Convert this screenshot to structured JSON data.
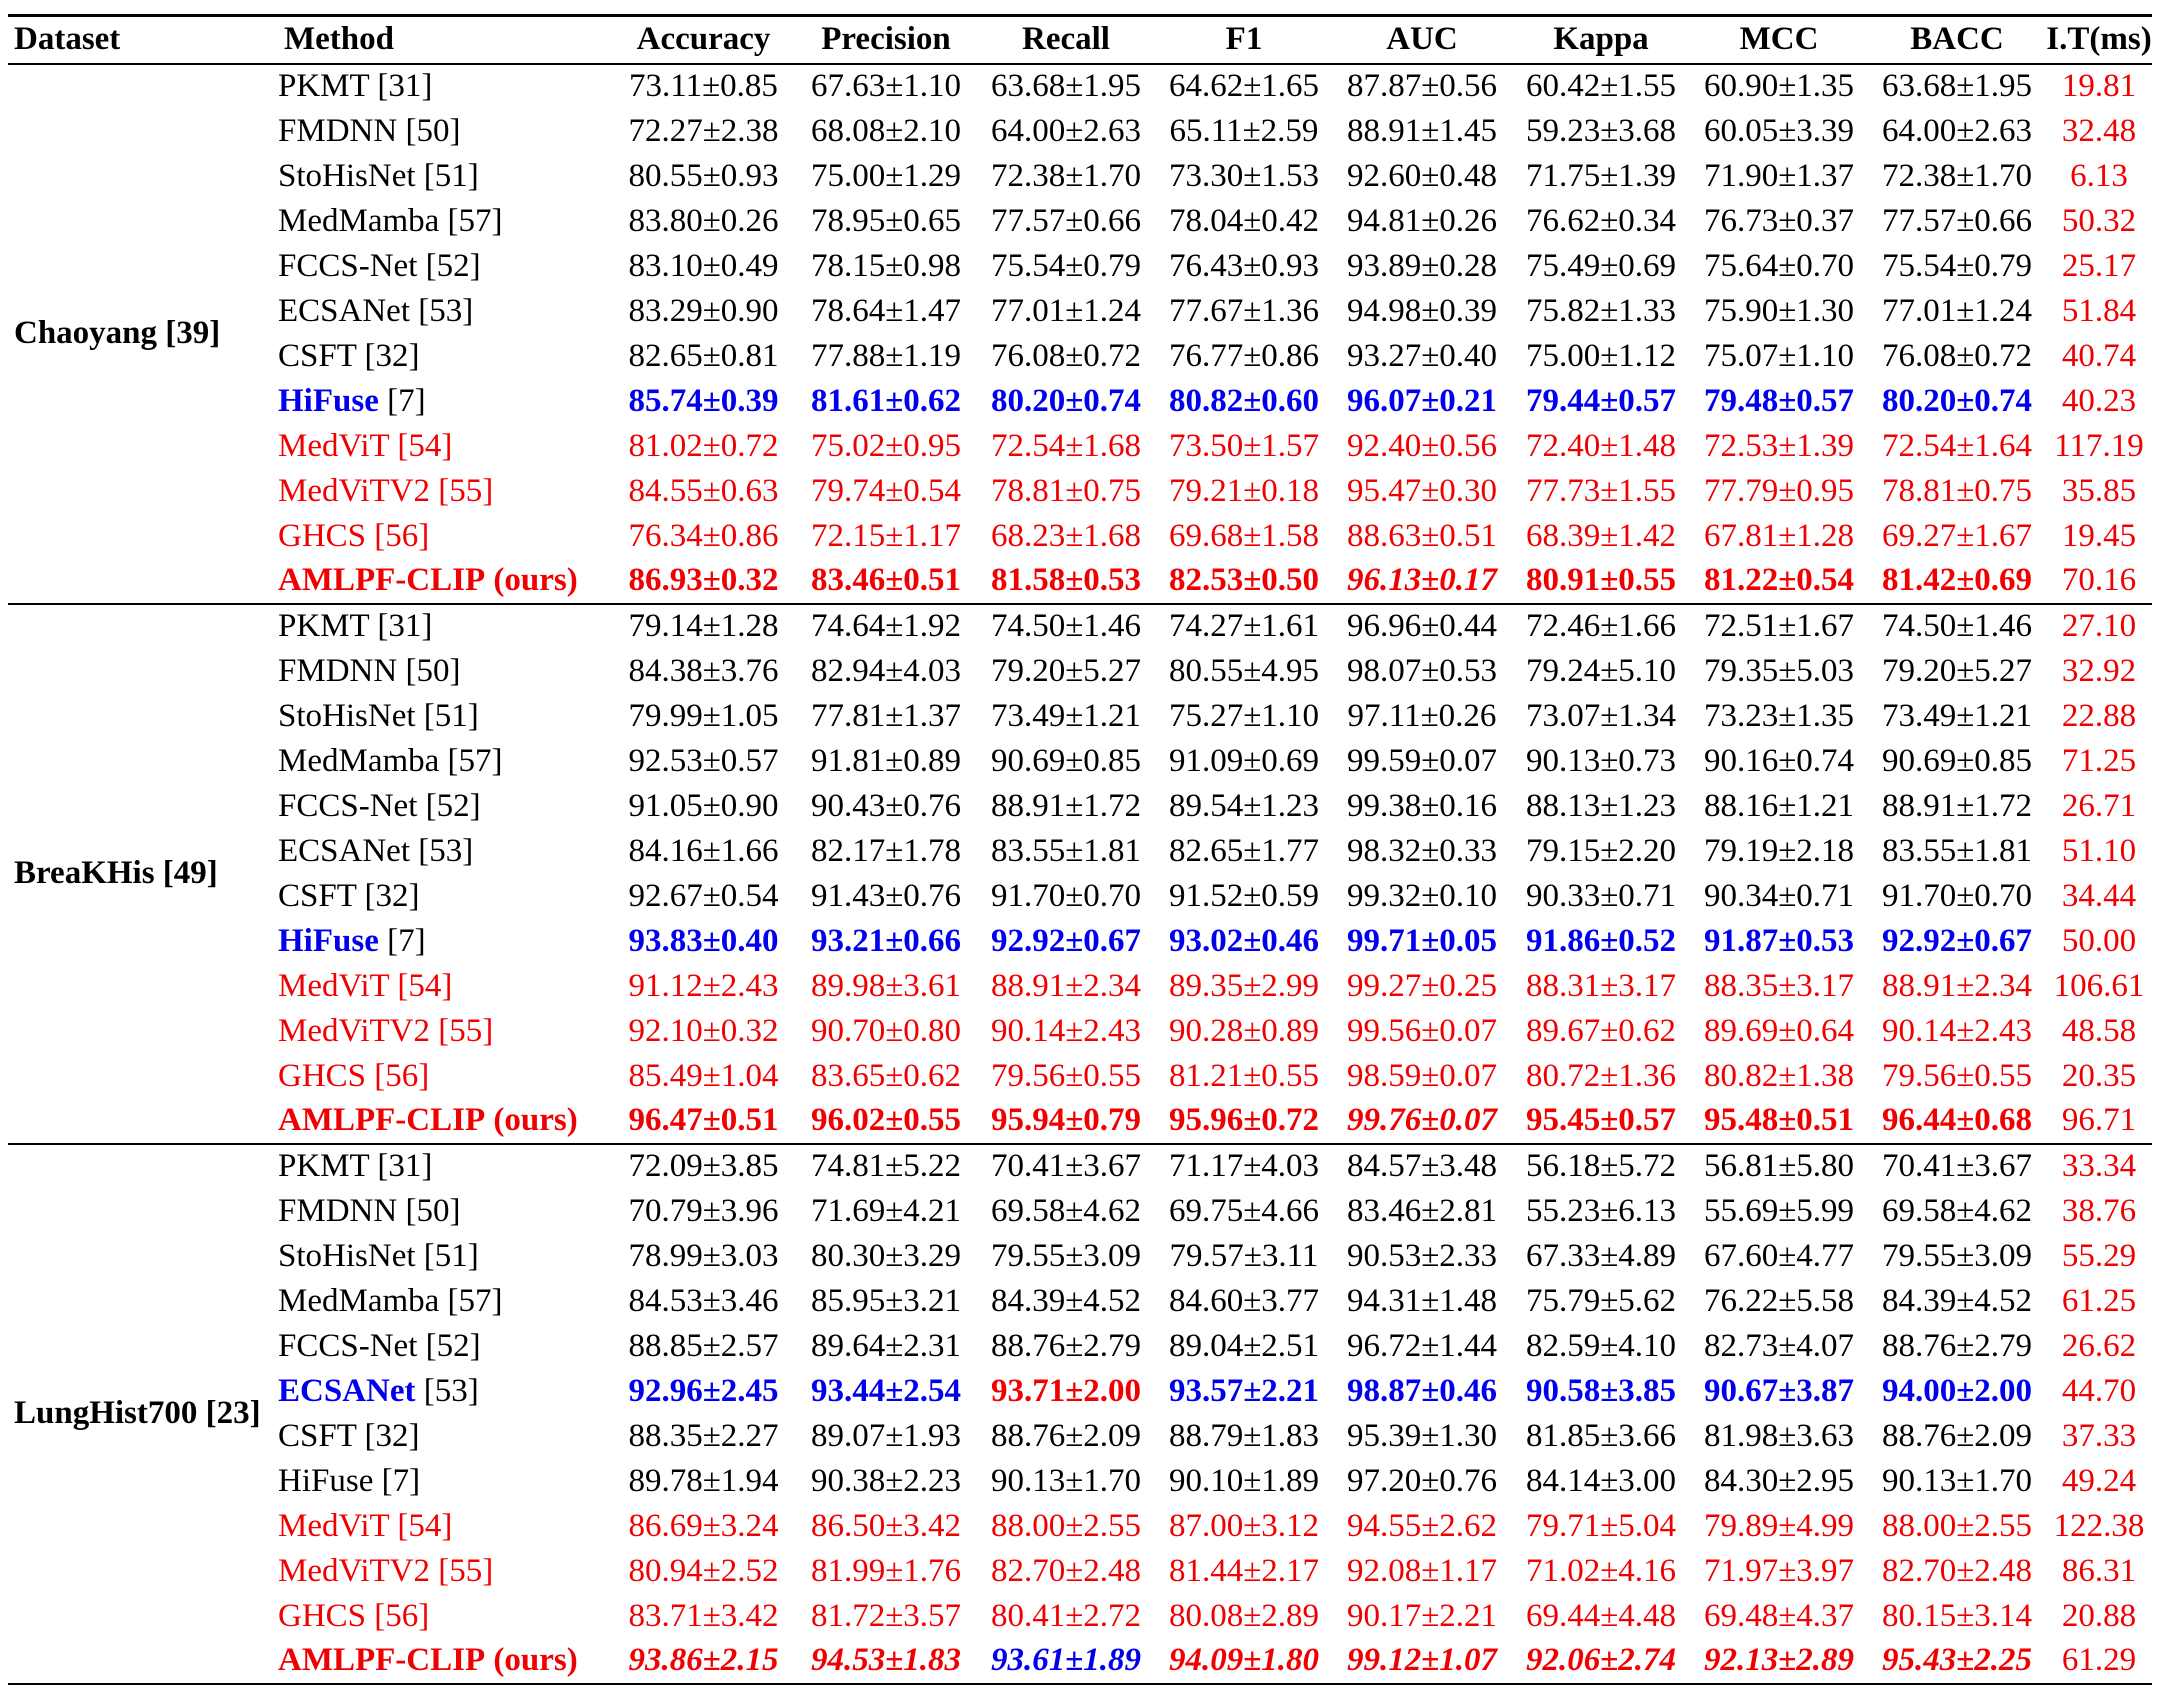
{
  "colors": {
    "red": "#f00000",
    "blue": "#0000ee",
    "black": "#000000"
  },
  "headers": [
    "Dataset",
    "Method",
    "Accuracy",
    "Precision",
    "Recall",
    "F1",
    "AUC",
    "Kappa",
    "MCC",
    "BACC",
    "I.T(ms)"
  ],
  "groups": [
    {
      "dataset": "Chaoyang [39]",
      "rows": [
        {
          "name": "PKMT",
          "ref": "[31]",
          "nc": "black",
          "nb": false,
          "vals": [
            "73.11±0.85",
            "67.63±1.10",
            "63.68±1.95",
            "64.62±1.65",
            "87.87±0.56",
            "60.42±1.55",
            "60.90±1.35",
            "63.68±1.95"
          ],
          "it": "19.81"
        },
        {
          "name": "FMDNN",
          "ref": "[50]",
          "nc": "black",
          "nb": false,
          "vals": [
            "72.27±2.38",
            "68.08±2.10",
            "64.00±2.63",
            "65.11±2.59",
            "88.91±1.45",
            "59.23±3.68",
            "60.05±3.39",
            "64.00±2.63"
          ],
          "it": "32.48"
        },
        {
          "name": "StoHisNet",
          "ref": "[51]",
          "nc": "black",
          "nb": false,
          "vals": [
            "80.55±0.93",
            "75.00±1.29",
            "72.38±1.70",
            "73.30±1.53",
            "92.60±0.48",
            "71.75±1.39",
            "71.90±1.37",
            "72.38±1.70"
          ],
          "it": "6.13"
        },
        {
          "name": "MedMamba",
          "ref": "[57]",
          "nc": "black",
          "nb": false,
          "vals": [
            "83.80±0.26",
            "78.95±0.65",
            "77.57±0.66",
            "78.04±0.42",
            "94.81±0.26",
            "76.62±0.34",
            "76.73±0.37",
            "77.57±0.66"
          ],
          "it": "50.32"
        },
        {
          "name": "FCCS-Net",
          "ref": "[52]",
          "nc": "black",
          "nb": false,
          "vals": [
            "83.10±0.49",
            "78.15±0.98",
            "75.54±0.79",
            "76.43±0.93",
            "93.89±0.28",
            "75.49±0.69",
            "75.64±0.70",
            "75.54±0.79"
          ],
          "it": "25.17"
        },
        {
          "name": "ECSANet",
          "ref": "[53]",
          "nc": "black",
          "nb": false,
          "vals": [
            "83.29±0.90",
            "78.64±1.47",
            "77.01±1.24",
            "77.67±1.36",
            "94.98±0.39",
            "75.82±1.33",
            "75.90±1.30",
            "77.01±1.24"
          ],
          "it": "51.84"
        },
        {
          "name": "CSFT",
          "ref": "[32]",
          "nc": "black",
          "nb": false,
          "vals": [
            "82.65±0.81",
            "77.88±1.19",
            "76.08±0.72",
            "76.77±0.86",
            "93.27±0.40",
            "75.00±1.12",
            "75.07±1.10",
            "76.08±0.72"
          ],
          "it": "40.74"
        },
        {
          "name": "HiFuse",
          "ref": "[7]",
          "nc": "blue",
          "nb": true,
          "vals": [
            "85.74±0.39",
            "81.61±0.62",
            "80.20±0.74",
            "80.82±0.60",
            "96.07±0.21",
            "79.44±0.57",
            "79.48±0.57",
            "80.20±0.74"
          ],
          "it": "40.23"
        },
        {
          "name": "MedViT",
          "ref": "[54]",
          "nc": "red",
          "nb": false,
          "vals": [
            "81.02±0.72",
            "75.02±0.95",
            "72.54±1.68",
            "73.50±1.57",
            "92.40±0.56",
            "72.40±1.48",
            "72.53±1.39",
            "72.54±1.64"
          ],
          "it": "117.19"
        },
        {
          "name": "MedViTV2",
          "ref": "[55]",
          "nc": "red",
          "nb": false,
          "vals": [
            "84.55±0.63",
            "79.74±0.54",
            "78.81±0.75",
            "79.21±0.18",
            "95.47±0.30",
            "77.73±1.55",
            "77.79±0.95",
            "78.81±0.75"
          ],
          "it": "35.85"
        },
        {
          "name": "GHCS",
          "ref": "[56]",
          "nc": "red",
          "nb": false,
          "vals": [
            "76.34±0.86",
            "72.15±1.17",
            "68.23±1.68",
            "69.68±1.58",
            "88.63±0.51",
            "68.39±1.42",
            "67.81±1.28",
            "69.27±1.67"
          ],
          "it": "19.45"
        },
        {
          "name": "AMLPF-CLIP",
          "ref": "(ours)",
          "nc": "red",
          "nb": true,
          "vals": [
            "86.93±0.32",
            "83.46±0.51",
            "81.58±0.53",
            "82.53±0.50",
            "96.13±0.17",
            "80.91±0.55",
            "81.22±0.54",
            "81.42±0.69"
          ],
          "it": "70.16"
        }
      ]
    },
    {
      "dataset": "BreaKHis [49]",
      "rows": [
        {
          "name": "PKMT",
          "ref": "[31]",
          "nc": "black",
          "nb": false,
          "vals": [
            "79.14±1.28",
            "74.64±1.92",
            "74.50±1.46",
            "74.27±1.61",
            "96.96±0.44",
            "72.46±1.66",
            "72.51±1.67",
            "74.50±1.46"
          ],
          "it": "27.10"
        },
        {
          "name": "FMDNN",
          "ref": "[50]",
          "nc": "black",
          "nb": false,
          "vals": [
            "84.38±3.76",
            "82.94±4.03",
            "79.20±5.27",
            "80.55±4.95",
            "98.07±0.53",
            "79.24±5.10",
            "79.35±5.03",
            "79.20±5.27"
          ],
          "it": "32.92"
        },
        {
          "name": "StoHisNet",
          "ref": "[51]",
          "nc": "black",
          "nb": false,
          "vals": [
            "79.99±1.05",
            "77.81±1.37",
            "73.49±1.21",
            "75.27±1.10",
            "97.11±0.26",
            "73.07±1.34",
            "73.23±1.35",
            "73.49±1.21"
          ],
          "it": "22.88"
        },
        {
          "name": "MedMamba",
          "ref": "[57]",
          "nc": "black",
          "nb": false,
          "vals": [
            "92.53±0.57",
            "91.81±0.89",
            "90.69±0.85",
            "91.09±0.69",
            "99.59±0.07",
            "90.13±0.73",
            "90.16±0.74",
            "90.69±0.85"
          ],
          "it": "71.25"
        },
        {
          "name": "FCCS-Net",
          "ref": "[52]",
          "nc": "black",
          "nb": false,
          "vals": [
            "91.05±0.90",
            "90.43±0.76",
            "88.91±1.72",
            "89.54±1.23",
            "99.38±0.16",
            "88.13±1.23",
            "88.16±1.21",
            "88.91±1.72"
          ],
          "it": "26.71"
        },
        {
          "name": "ECSANet",
          "ref": "[53]",
          "nc": "black",
          "nb": false,
          "vals": [
            "84.16±1.66",
            "82.17±1.78",
            "83.55±1.81",
            "82.65±1.77",
            "98.32±0.33",
            "79.15±2.20",
            "79.19±2.18",
            "83.55±1.81"
          ],
          "it": "51.10"
        },
        {
          "name": "CSFT",
          "ref": "[32]",
          "nc": "black",
          "nb": false,
          "vals": [
            "92.67±0.54",
            "91.43±0.76",
            "91.70±0.70",
            "91.52±0.59",
            "99.32±0.10",
            "90.33±0.71",
            "90.34±0.71",
            "91.70±0.70"
          ],
          "it": "34.44"
        },
        {
          "name": "HiFuse",
          "ref": "[7]",
          "nc": "blue",
          "nb": true,
          "vals": [
            "93.83±0.40",
            "93.21±0.66",
            "92.92±0.67",
            "93.02±0.46",
            "99.71±0.05",
            "91.86±0.52",
            "91.87±0.53",
            "92.92±0.67"
          ],
          "it": "50.00"
        },
        {
          "name": "MedViT",
          "ref": "[54]",
          "nc": "red",
          "nb": false,
          "vals": [
            "91.12±2.43",
            "89.98±3.61",
            "88.91±2.34",
            "89.35±2.99",
            "99.27±0.25",
            "88.31±3.17",
            "88.35±3.17",
            "88.91±2.34"
          ],
          "it": "106.61"
        },
        {
          "name": "MedViTV2",
          "ref": "[55]",
          "nc": "red",
          "nb": false,
          "vals": [
            "92.10±0.32",
            "90.70±0.80",
            "90.14±2.43",
            "90.28±0.89",
            "99.56±0.07",
            "89.67±0.62",
            "89.69±0.64",
            "90.14±2.43"
          ],
          "it": "48.58"
        },
        {
          "name": "GHCS",
          "ref": "[56]",
          "nc": "red",
          "nb": false,
          "vals": [
            "85.49±1.04",
            "83.65±0.62",
            "79.56±0.55",
            "81.21±0.55",
            "98.59±0.07",
            "80.72±1.36",
            "80.82±1.38",
            "79.56±0.55"
          ],
          "it": "20.35"
        },
        {
          "name": "AMLPF-CLIP",
          "ref": "(ours)",
          "nc": "red",
          "nb": true,
          "vals": [
            "96.47±0.51",
            "96.02±0.55",
            "95.94±0.79",
            "95.96±0.72",
            "99.76±0.07",
            "95.45±0.57",
            "95.48±0.51",
            "96.44±0.68"
          ],
          "it": "96.71"
        }
      ]
    },
    {
      "dataset": "LungHist700 [23]",
      "rows": [
        {
          "name": "PKMT",
          "ref": "[31]",
          "nc": "black",
          "nb": false,
          "vals": [
            "72.09±3.85",
            "74.81±5.22",
            "70.41±3.67",
            "71.17±4.03",
            "84.57±3.48",
            "56.18±5.72",
            "56.81±5.80",
            "70.41±3.67"
          ],
          "it": "33.34"
        },
        {
          "name": "FMDNN",
          "ref": "[50]",
          "nc": "black",
          "nb": false,
          "vals": [
            "70.79±3.96",
            "71.69±4.21",
            "69.58±4.62",
            "69.75±4.66",
            "83.46±2.81",
            "55.23±6.13",
            "55.69±5.99",
            "69.58±4.62"
          ],
          "it": "38.76"
        },
        {
          "name": "StoHisNet",
          "ref": "[51]",
          "nc": "black",
          "nb": false,
          "vals": [
            "78.99±3.03",
            "80.30±3.29",
            "79.55±3.09",
            "79.57±3.11",
            "90.53±2.33",
            "67.33±4.89",
            "67.60±4.77",
            "79.55±3.09"
          ],
          "it": "55.29"
        },
        {
          "name": "MedMamba",
          "ref": "[57]",
          "nc": "black",
          "nb": false,
          "vals": [
            "84.53±3.46",
            "85.95±3.21",
            "84.39±4.52",
            "84.60±3.77",
            "94.31±1.48",
            "75.79±5.62",
            "76.22±5.58",
            "84.39±4.52"
          ],
          "it": "61.25"
        },
        {
          "name": "FCCS-Net",
          "ref": "[52]",
          "nc": "black",
          "nb": false,
          "vals": [
            "88.85±2.57",
            "89.64±2.31",
            "88.76±2.79",
            "89.04±2.51",
            "96.72±1.44",
            "82.59±4.10",
            "82.73±4.07",
            "88.76±2.79"
          ],
          "it": "26.62"
        },
        {
          "name": "ECSANet",
          "ref": "[53]",
          "nc": "blue",
          "nb": true,
          "vals": [
            "92.96±2.45",
            "93.44±2.54",
            "93.71±2.00",
            "93.57±2.21",
            "98.87±0.46",
            "90.58±3.85",
            "90.67±3.87",
            "94.00±2.00"
          ],
          "it": "44.70"
        },
        {
          "name": "CSFT",
          "ref": "[32]",
          "nc": "black",
          "nb": false,
          "vals": [
            "88.35±2.27",
            "89.07±1.93",
            "88.76±2.09",
            "88.79±1.83",
            "95.39±1.30",
            "81.85±3.66",
            "81.98±3.63",
            "88.76±2.09"
          ],
          "it": "37.33"
        },
        {
          "name": "HiFuse",
          "ref": "[7]",
          "nc": "black",
          "nb": false,
          "vals": [
            "89.78±1.94",
            "90.38±2.23",
            "90.13±1.70",
            "90.10±1.89",
            "97.20±0.76",
            "84.14±3.00",
            "84.30±2.95",
            "90.13±1.70"
          ],
          "it": "49.24"
        },
        {
          "name": "MedViT",
          "ref": "[54]",
          "nc": "red",
          "nb": false,
          "vals": [
            "86.69±3.24",
            "86.50±3.42",
            "88.00±2.55",
            "87.00±3.12",
            "94.55±2.62",
            "79.71±5.04",
            "79.89±4.99",
            "88.00±2.55"
          ],
          "it": "122.38"
        },
        {
          "name": "MedViTV2",
          "ref": "[55]",
          "nc": "red",
          "nb": false,
          "vals": [
            "80.94±2.52",
            "81.99±1.76",
            "82.70±2.48",
            "81.44±2.17",
            "92.08±1.17",
            "71.02±4.16",
            "71.97±3.97",
            "82.70±2.48"
          ],
          "it": "86.31"
        },
        {
          "name": "GHCS",
          "ref": "[56]",
          "nc": "red",
          "nb": false,
          "vals": [
            "83.71±3.42",
            "81.72±3.57",
            "80.41±2.72",
            "80.08±2.89",
            "90.17±2.21",
            "69.44±4.48",
            "69.48±4.37",
            "80.15±3.14"
          ],
          "it": "20.88"
        },
        {
          "name": "AMLPF-CLIP",
          "ref": "(ours)",
          "nc": "red",
          "nb": true,
          "vals": [
            "93.86±2.15",
            "94.53±1.83",
            "93.61±1.89",
            "94.09±1.80",
            "99.12±1.07",
            "92.06±2.74",
            "92.13±2.89",
            "95.43±2.25"
          ],
          "it": "61.29"
        }
      ]
    }
  ]
}
